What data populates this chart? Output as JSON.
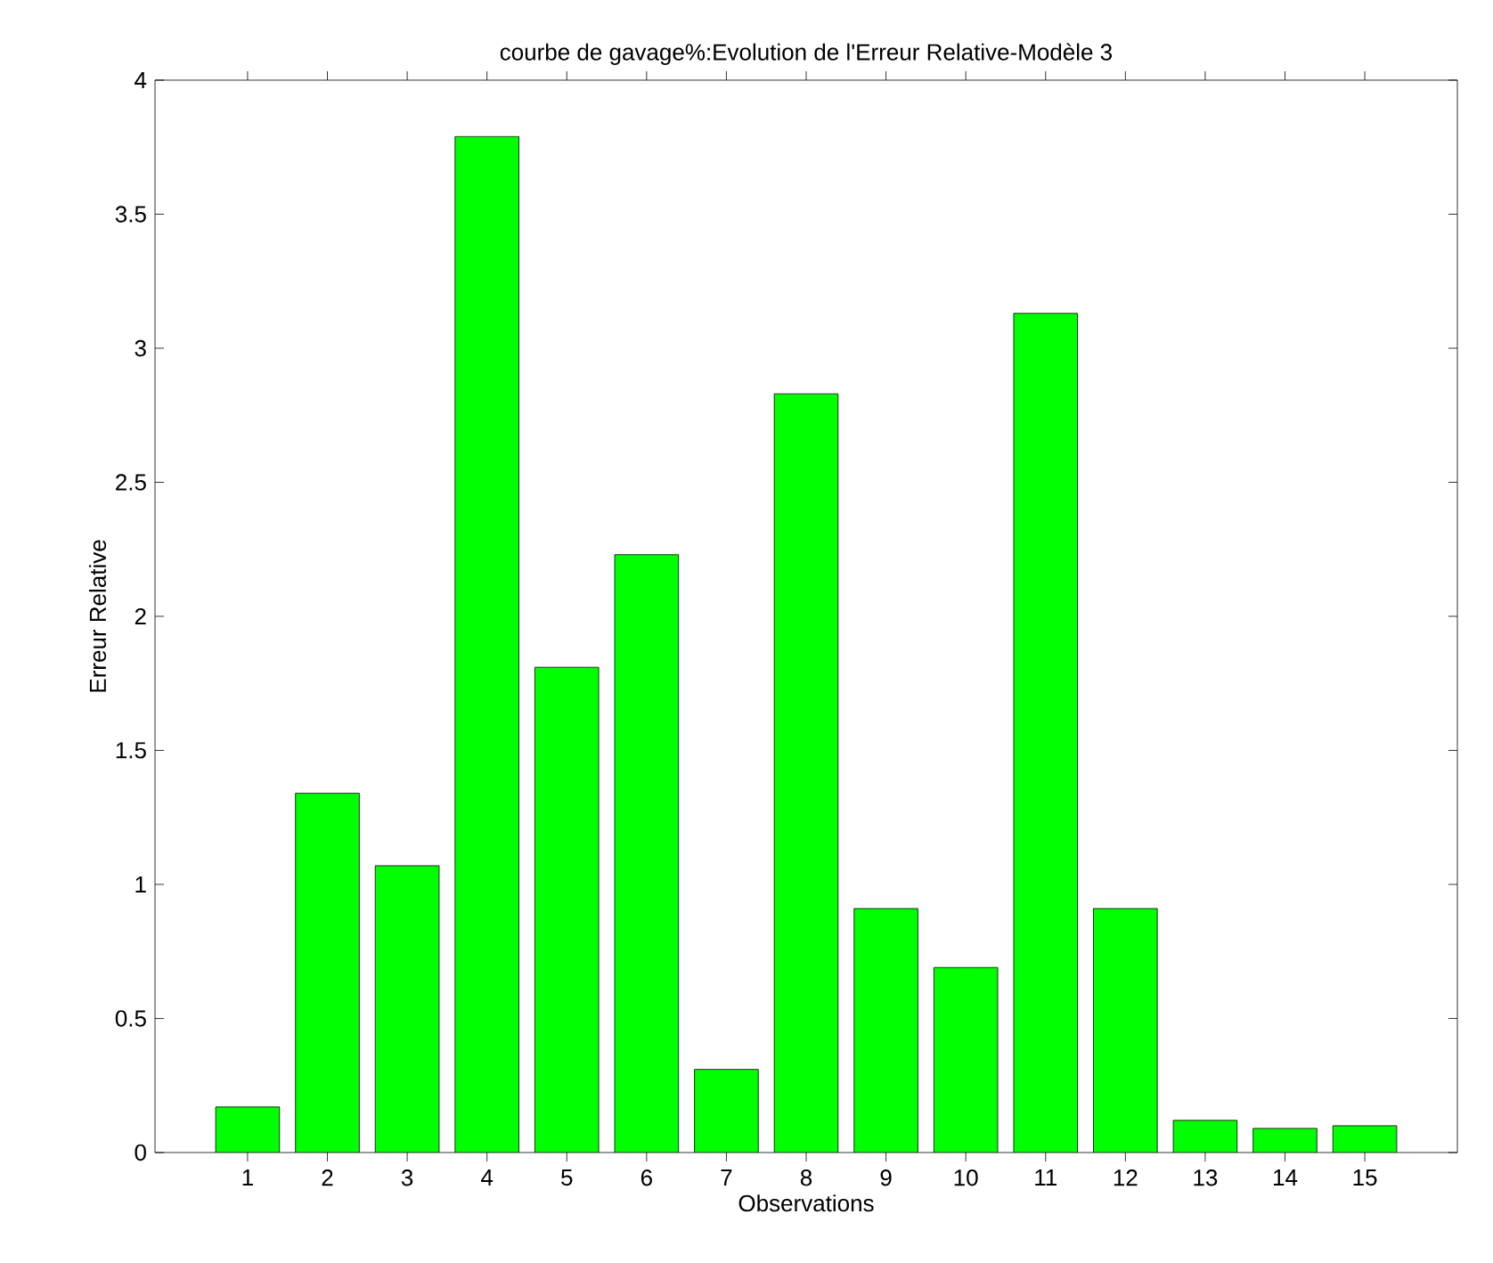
{
  "chart_data": {
    "type": "bar",
    "title": "courbe de gavage%:Evolution de l'Erreur Relative-Modèle 3",
    "xlabel": "Observations",
    "ylabel": "Erreur Relative",
    "categories": [
      "1",
      "2",
      "3",
      "4",
      "5",
      "6",
      "7",
      "8",
      "9",
      "10",
      "11",
      "12",
      "13",
      "14",
      "15"
    ],
    "values": [
      0.17,
      1.34,
      1.07,
      3.79,
      1.81,
      2.23,
      0.31,
      2.83,
      0.91,
      0.69,
      3.13,
      0.91,
      0.12,
      0.09,
      0.1
    ],
    "color": "#00ff00",
    "ylim": [
      0,
      4
    ],
    "yticks": [
      0,
      0.5,
      1,
      1.5,
      2,
      2.5,
      3,
      3.5,
      4
    ],
    "grid": false
  }
}
